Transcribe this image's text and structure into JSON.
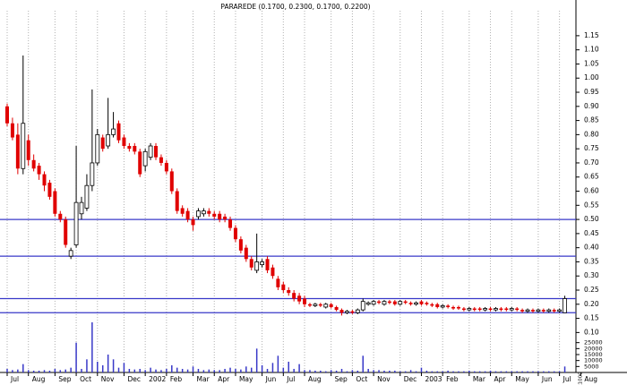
{
  "chart_data": [
    {
      "type": "candlestick",
      "title": "PARAREDE (0.1700, 0.2300, 0.1700, 0.2200)",
      "categories": [
        null,
        null,
        null,
        null,
        null,
        null,
        null,
        null,
        null,
        null,
        null,
        null,
        null,
        null,
        null,
        null,
        null,
        null,
        null,
        null,
        null,
        null,
        null,
        null,
        null,
        null,
        null,
        null,
        null,
        null,
        null,
        null,
        null,
        null,
        null,
        null,
        null,
        null,
        null,
        null,
        null,
        null,
        null,
        null,
        null,
        null,
        null,
        null,
        null,
        null,
        null,
        null,
        null,
        null,
        null,
        null,
        null,
        null,
        null,
        null,
        null,
        null,
        null,
        null,
        null,
        null,
        null,
        null,
        null,
        null,
        null,
        null,
        null,
        null,
        null,
        null,
        null,
        null,
        null,
        null,
        null,
        null,
        null,
        null,
        null,
        null,
        null,
        null,
        null,
        null,
        null,
        null,
        null,
        null,
        null,
        null,
        null,
        null,
        null,
        null,
        null,
        null,
        null,
        null,
        null,
        null
      ],
      "open": [
        0.9,
        0.84,
        0.8,
        0.68,
        0.78,
        0.71,
        0.69,
        0.66,
        0.63,
        0.6,
        0.52,
        0.5,
        0.37,
        0.41,
        0.52,
        0.54,
        0.62,
        0.7,
        0.79,
        0.76,
        0.8,
        0.84,
        0.79,
        0.76,
        0.76,
        0.74,
        0.69,
        0.72,
        0.76,
        0.72,
        0.7,
        0.67,
        0.6,
        0.54,
        0.53,
        0.5,
        0.51,
        0.52,
        0.53,
        0.52,
        0.52,
        0.51,
        0.5,
        0.47,
        0.43,
        0.4,
        0.36,
        0.32,
        0.34,
        0.36,
        0.33,
        0.29,
        0.27,
        0.25,
        0.24,
        0.23,
        0.22,
        0.2,
        0.195,
        0.2,
        0.19,
        0.2,
        0.19,
        0.18,
        0.17,
        0.175,
        0.17,
        0.18,
        0.2,
        0.2,
        0.21,
        0.2,
        0.21,
        0.21,
        0.2,
        0.21,
        0.205,
        0.2,
        0.21,
        0.205,
        0.2,
        0.2,
        0.19,
        0.195,
        0.19,
        0.19,
        0.185,
        0.18,
        0.185,
        0.185,
        0.18,
        0.185,
        0.18,
        0.185,
        0.185,
        0.18,
        0.185,
        0.18,
        0.175,
        0.18,
        0.175,
        0.18,
        0.175,
        0.18,
        0.175,
        0.17
      ],
      "high": [
        0.91,
        0.86,
        0.84,
        1.08,
        0.8,
        0.73,
        0.7,
        0.67,
        0.64,
        0.61,
        0.53,
        0.51,
        0.4,
        0.76,
        0.58,
        0.66,
        0.96,
        0.82,
        0.8,
        0.93,
        0.88,
        0.85,
        0.8,
        0.77,
        0.77,
        0.75,
        0.75,
        0.77,
        0.77,
        0.73,
        0.71,
        0.68,
        0.61,
        0.55,
        0.54,
        0.51,
        0.54,
        0.54,
        0.54,
        0.53,
        0.53,
        0.52,
        0.51,
        0.48,
        0.44,
        0.41,
        0.37,
        0.45,
        0.36,
        0.37,
        0.34,
        0.3,
        0.28,
        0.26,
        0.25,
        0.24,
        0.23,
        0.205,
        0.205,
        0.205,
        0.205,
        0.205,
        0.195,
        0.185,
        0.18,
        0.18,
        0.185,
        0.22,
        0.21,
        0.215,
        0.215,
        0.215,
        0.215,
        0.215,
        0.215,
        0.215,
        0.21,
        0.21,
        0.215,
        0.21,
        0.205,
        0.205,
        0.2,
        0.2,
        0.195,
        0.195,
        0.19,
        0.19,
        0.19,
        0.19,
        0.19,
        0.19,
        0.19,
        0.19,
        0.19,
        0.19,
        0.19,
        0.185,
        0.185,
        0.185,
        0.185,
        0.185,
        0.185,
        0.185,
        0.185,
        0.23
      ],
      "low": [
        0.83,
        0.78,
        0.66,
        0.66,
        0.69,
        0.67,
        0.64,
        0.6,
        0.57,
        0.51,
        0.49,
        0.4,
        0.36,
        0.4,
        0.5,
        0.53,
        0.6,
        0.69,
        0.74,
        0.75,
        0.79,
        0.77,
        0.75,
        0.74,
        0.73,
        0.65,
        0.67,
        0.71,
        0.71,
        0.69,
        0.66,
        0.59,
        0.52,
        0.51,
        0.49,
        0.46,
        0.5,
        0.51,
        0.51,
        0.5,
        0.49,
        0.49,
        0.46,
        0.42,
        0.38,
        0.35,
        0.32,
        0.31,
        0.33,
        0.31,
        0.29,
        0.25,
        0.24,
        0.23,
        0.21,
        0.2,
        0.19,
        0.19,
        0.19,
        0.19,
        0.185,
        0.185,
        0.175,
        0.16,
        0.165,
        0.165,
        0.165,
        0.175,
        0.195,
        0.195,
        0.2,
        0.195,
        0.2,
        0.195,
        0.195,
        0.2,
        0.195,
        0.195,
        0.195,
        0.195,
        0.19,
        0.185,
        0.185,
        0.185,
        0.18,
        0.18,
        0.175,
        0.175,
        0.175,
        0.175,
        0.175,
        0.175,
        0.175,
        0.175,
        0.175,
        0.175,
        0.175,
        0.17,
        0.17,
        0.17,
        0.17,
        0.17,
        0.17,
        0.17,
        0.17,
        0.17
      ],
      "close": [
        0.84,
        0.79,
        0.68,
        0.84,
        0.71,
        0.68,
        0.66,
        0.62,
        0.58,
        0.52,
        0.5,
        0.41,
        0.39,
        0.56,
        0.56,
        0.62,
        0.7,
        0.8,
        0.75,
        0.8,
        0.82,
        0.78,
        0.76,
        0.75,
        0.74,
        0.66,
        0.74,
        0.76,
        0.72,
        0.7,
        0.67,
        0.6,
        0.53,
        0.52,
        0.5,
        0.48,
        0.53,
        0.53,
        0.52,
        0.51,
        0.5,
        0.5,
        0.47,
        0.43,
        0.39,
        0.36,
        0.33,
        0.35,
        0.35,
        0.32,
        0.3,
        0.26,
        0.25,
        0.24,
        0.22,
        0.21,
        0.2,
        0.195,
        0.2,
        0.195,
        0.2,
        0.19,
        0.18,
        0.17,
        0.175,
        0.17,
        0.18,
        0.21,
        0.205,
        0.21,
        0.205,
        0.21,
        0.205,
        0.2,
        0.21,
        0.205,
        0.2,
        0.205,
        0.2,
        0.2,
        0.195,
        0.19,
        0.195,
        0.19,
        0.185,
        0.185,
        0.18,
        0.185,
        0.18,
        0.18,
        0.185,
        0.18,
        0.185,
        0.18,
        0.18,
        0.185,
        0.18,
        0.175,
        0.18,
        0.175,
        0.18,
        0.175,
        0.18,
        0.175,
        0.18,
        0.22
      ],
      "up_color": "#ffffff",
      "down_color": "#e00000",
      "outline_color": "#000000",
      "ylim": [
        0.06,
        1.27
      ],
      "yticks": [
        {
          "value": 0.1,
          "label": "0.10"
        },
        {
          "value": 0.15,
          "label": "0.15"
        },
        {
          "value": 0.2,
          "label": "0.20"
        },
        {
          "value": 0.25,
          "label": "0.25"
        },
        {
          "value": 0.3,
          "label": "0.30"
        },
        {
          "value": 0.35,
          "label": "0.35"
        },
        {
          "value": 0.4,
          "label": "0.40"
        },
        {
          "value": 0.45,
          "label": "0.45"
        },
        {
          "value": 0.5,
          "label": "0.50"
        },
        {
          "value": 0.55,
          "label": "0.55"
        },
        {
          "value": 0.6,
          "label": "0.60"
        },
        {
          "value": 0.65,
          "label": "0.65"
        },
        {
          "value": 0.7,
          "label": "0.70"
        },
        {
          "value": 0.75,
          "label": "0.75"
        },
        {
          "value": 0.8,
          "label": "0.80"
        },
        {
          "value": 0.85,
          "label": "0.85"
        },
        {
          "value": 0.9,
          "label": "0.90"
        },
        {
          "value": 0.95,
          "label": "0.95"
        },
        {
          "value": 1,
          "label": "1.00"
        },
        {
          "value": 1.05,
          "label": "1.05"
        },
        {
          "value": 1.1,
          "label": "1.10"
        },
        {
          "value": 1.15,
          "label": "1.15"
        }
      ],
      "xlim": [
        -1.35,
        107.1
      ],
      "xticks": [
        {
          "value": 0,
          "label": "Jul"
        },
        {
          "value": 4,
          "label": "Aug"
        },
        {
          "value": 9,
          "label": "Sep"
        },
        {
          "value": 13,
          "label": "Oct"
        },
        {
          "value": 17,
          "label": "Nov"
        },
        {
          "value": 22,
          "label": "Dec"
        },
        {
          "value": 26,
          "label": "2002"
        },
        {
          "value": 30,
          "label": "Feb"
        },
        {
          "value": 35,
          "label": "Mar"
        },
        {
          "value": 39,
          "label": "Apr"
        },
        {
          "value": 43,
          "label": "May"
        },
        {
          "value": 48,
          "label": "Jun"
        },
        {
          "value": 52,
          "label": "Jul"
        },
        {
          "value": 56,
          "label": "Aug"
        },
        {
          "value": 61,
          "label": "Sep"
        },
        {
          "value": 65,
          "label": "Oct"
        },
        {
          "value": 69,
          "label": "Nov"
        },
        {
          "value": 74,
          "label": "Dec"
        },
        {
          "value": 78,
          "label": "2003"
        },
        {
          "value": 82,
          "label": "Feb"
        },
        {
          "value": 87,
          "label": "Mar"
        },
        {
          "value": 91,
          "label": "Apr"
        },
        {
          "value": 95,
          "label": "May"
        },
        {
          "value": 100,
          "label": "Jun"
        },
        {
          "value": 104,
          "label": "Jul"
        },
        {
          "value": 108,
          "label": "Aug"
        }
      ],
      "grid": true,
      "hlines": [
        0.5,
        0.37,
        0.22,
        0.17
      ],
      "hline_color": "#3838c8"
    },
    {
      "type": "bar",
      "ylabel": "x1000",
      "categories": [
        null,
        null,
        null,
        null,
        null,
        null,
        null,
        null,
        null,
        null,
        null,
        null,
        null,
        null,
        null,
        null,
        null,
        null,
        null,
        null,
        null,
        null,
        null,
        null,
        null,
        null,
        null,
        null,
        null,
        null,
        null,
        null,
        null,
        null,
        null,
        null,
        null,
        null,
        null,
        null,
        null,
        null,
        null,
        null,
        null,
        null,
        null,
        null,
        null,
        null,
        null,
        null,
        null,
        null,
        null,
        null,
        null,
        null,
        null,
        null,
        null,
        null,
        null,
        null,
        null,
        null,
        null,
        null,
        null,
        null,
        null,
        null,
        null,
        null,
        null,
        null,
        null,
        null,
        null,
        null,
        null,
        null,
        null,
        null,
        null,
        null,
        null,
        null,
        null,
        null,
        null,
        null,
        null,
        null,
        null,
        null,
        null,
        null,
        null,
        null,
        null,
        null,
        null,
        null,
        null,
        null
      ],
      "values": [
        3000,
        2000,
        2500,
        7000,
        2000,
        1500,
        1500,
        2000,
        1500,
        3000,
        2000,
        2500,
        4000,
        25000,
        3000,
        11000,
        42000,
        9000,
        6000,
        15000,
        11000,
        4000,
        8000,
        3000,
        2500,
        3000,
        2000,
        4000,
        2500,
        2000,
        3000,
        6000,
        4000,
        3000,
        2500,
        5000,
        3000,
        2000,
        2500,
        2000,
        2000,
        3000,
        4000,
        3000,
        2500,
        5000,
        4000,
        20000,
        6000,
        3000,
        8000,
        14000,
        4000,
        9000,
        3000,
        7000,
        2000,
        2000,
        1500,
        1500,
        1000,
        2000,
        1500,
        3000,
        1000,
        2000,
        1500,
        14000,
        3000,
        2000,
        2000,
        1500,
        1500,
        1500,
        1000,
        1000,
        2000,
        1000,
        4000,
        1500,
        1000,
        1000,
        1000,
        1500,
        1000,
        1000,
        1000,
        1500,
        1000,
        1000,
        1000,
        1500,
        1000,
        1000,
        1000,
        1000,
        1000,
        1000,
        1000,
        1000,
        1000,
        1000,
        1000,
        1000,
        1000,
        5000
      ],
      "color": "#3838c8",
      "ylim": [
        0,
        45000
      ],
      "yticks": [
        5000,
        10000,
        15000,
        20000,
        25000
      ]
    }
  ]
}
